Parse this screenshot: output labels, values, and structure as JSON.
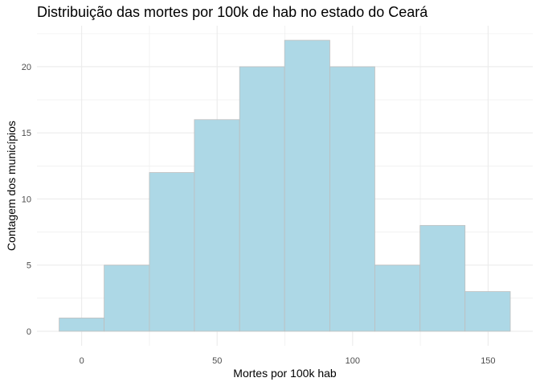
{
  "chart_data": {
    "type": "bar",
    "title": "Distribuição das mortes por 100k de hab no estado do Ceará",
    "xlabel": "Mortes por 100k hab",
    "ylabel": "Contagem dos municípios",
    "bins": [
      {
        "x_start": -8.3,
        "x_end": 8.3,
        "count": 1
      },
      {
        "x_start": 8.3,
        "x_end": 25.0,
        "count": 5
      },
      {
        "x_start": 25.0,
        "x_end": 41.6,
        "count": 12
      },
      {
        "x_start": 41.6,
        "x_end": 58.3,
        "count": 16
      },
      {
        "x_start": 58.3,
        "x_end": 74.9,
        "count": 20
      },
      {
        "x_start": 74.9,
        "x_end": 91.6,
        "count": 22
      },
      {
        "x_start": 91.6,
        "x_end": 108.2,
        "count": 20
      },
      {
        "x_start": 108.2,
        "x_end": 124.9,
        "count": 5
      },
      {
        "x_start": 124.9,
        "x_end": 141.5,
        "count": 8
      },
      {
        "x_start": 141.5,
        "x_end": 158.2,
        "count": 3
      }
    ],
    "xlim": [
      -16.5,
      166.5
    ],
    "ylim": [
      -1.1,
      23.1
    ],
    "x_ticks": [
      0,
      50,
      100,
      150
    ],
    "y_ticks": [
      0,
      5,
      10,
      15,
      20
    ],
    "grid": true,
    "bar_fill": "#add8e6",
    "bar_stroke": "#bebebe",
    "grid_color": "#ebebeb"
  }
}
